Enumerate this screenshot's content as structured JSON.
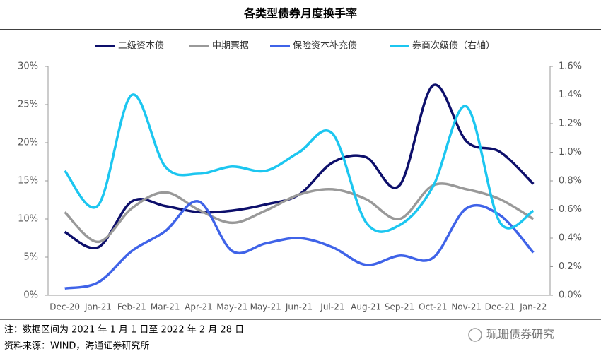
{
  "chart_data": {
    "type": "line",
    "title": "各类型债券月度换手率",
    "categories": [
      "Dec-20",
      "Jan-21",
      "Feb-21",
      "Mar-21",
      "Apr-21",
      "May-21",
      "May-21",
      "Jun-21",
      "Jul-21",
      "Aug-21",
      "Sep-21",
      "Oct-21",
      "Nov-21",
      "Dec-21",
      "Jan-22"
    ],
    "series": [
      {
        "name": "二级资本债",
        "color": "#0d0f6b",
        "values": [
          8.3,
          6.3,
          12.3,
          11.7,
          10.9,
          11.1,
          11.9,
          13.2,
          17.4,
          18.1,
          14.4,
          27.5,
          20.2,
          18.8,
          14.6
        ]
      },
      {
        "name": "中期票据",
        "color": "#999999",
        "values": [
          10.9,
          7.0,
          11.4,
          13.5,
          11.2,
          9.5,
          11.1,
          13.2,
          13.9,
          12.6,
          10.0,
          14.4,
          13.9,
          12.6,
          10.0
        ]
      },
      {
        "name": "保险资本补充债",
        "color": "#3f63e8",
        "values": [
          0.9,
          1.7,
          5.8,
          8.4,
          12.3,
          5.8,
          6.8,
          7.5,
          6.3,
          4.0,
          5.2,
          4.9,
          11.4,
          10.5,
          5.6
        ]
      },
      {
        "name": "券商次级债（右轴）",
        "color": "#1cc6f0",
        "axis": "y2",
        "values": [
          0.87,
          0.63,
          1.4,
          0.9,
          0.85,
          0.9,
          0.87,
          1.0,
          1.13,
          0.51,
          0.49,
          0.76,
          1.32,
          0.51,
          0.59
        ]
      }
    ],
    "ylim": [
      0,
      30
    ],
    "yticks": [
      {
        "value": 0,
        "label": "0%"
      },
      {
        "value": 5,
        "label": "5%"
      },
      {
        "value": 10,
        "label": "10%"
      },
      {
        "value": 15,
        "label": "15%"
      },
      {
        "value": 20,
        "label": "20%"
      },
      {
        "value": 25,
        "label": "25%"
      },
      {
        "value": 30,
        "label": "30%"
      }
    ],
    "y2lim": [
      0,
      1.6
    ],
    "y2ticks": [
      {
        "value": 0,
        "label": "0.0%"
      },
      {
        "value": 0.2,
        "label": "0.2%"
      },
      {
        "value": 0.4,
        "label": "0.4%"
      },
      {
        "value": 0.6,
        "label": "0.6%"
      },
      {
        "value": 0.8,
        "label": "0.8%"
      },
      {
        "value": 1.0,
        "label": "1.0%"
      },
      {
        "value": 1.2,
        "label": "1.2%"
      },
      {
        "value": 1.4,
        "label": "1.4%"
      },
      {
        "value": 1.6,
        "label": "1.6%"
      }
    ],
    "legend": "top",
    "notes": [
      "注：数据区间为 2021 年 1 月 1 日至 2022 年 2 月 28 日",
      "资料来源：WIND，海通证券研究所"
    ],
    "watermark": "珮珊债券研究"
  }
}
